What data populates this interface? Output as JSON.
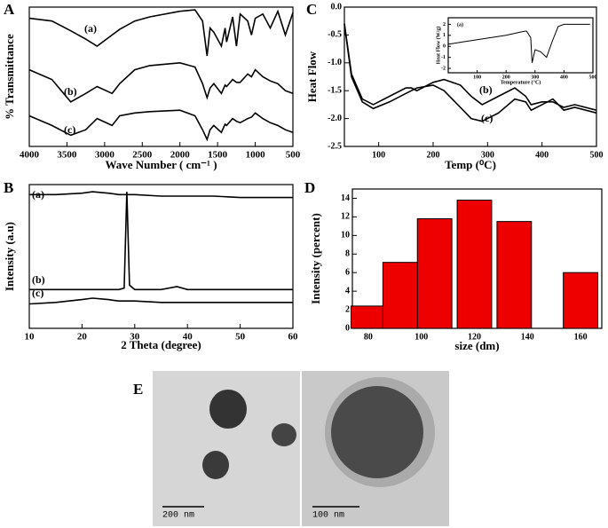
{
  "chart_data": [
    {
      "type": "line",
      "label": "A",
      "xlabel": "Wave Number ( cm⁻¹ )",
      "ylabel": "% Transmittance",
      "x": [
        4000,
        3700,
        3450,
        3250,
        3100,
        2900,
        2800,
        2600,
        2400,
        2000,
        1800,
        1700,
        1640,
        1600,
        1550,
        1450,
        1400,
        1380,
        1300,
        1250,
        1200,
        1100,
        1050,
        1000,
        900,
        800,
        700,
        600,
        500
      ],
      "series": [
        {
          "name": "(a)",
          "color": "#000000",
          "values": [
            92,
            90,
            83,
            77,
            72,
            80,
            84,
            90,
            93,
            97,
            98,
            90,
            65,
            85,
            82,
            72,
            85,
            75,
            93,
            72,
            95,
            90,
            80,
            92,
            95,
            85,
            97,
            80,
            96
          ]
        },
        {
          "name": "(b)",
          "color": "#000000",
          "values": [
            55,
            48,
            32,
            38,
            43,
            38,
            45,
            55,
            58,
            60,
            57,
            45,
            35,
            42,
            45,
            38,
            44,
            43,
            48,
            46,
            46,
            52,
            50,
            55,
            50,
            47,
            45,
            40,
            38
          ]
        },
        {
          "name": "(c)",
          "color": "#000000",
          "values": [
            22,
            15,
            8,
            12,
            20,
            15,
            22,
            24,
            25,
            26,
            22,
            12,
            5,
            12,
            15,
            10,
            16,
            15,
            20,
            18,
            17,
            20,
            21,
            24,
            20,
            17,
            15,
            12,
            10
          ]
        }
      ],
      "xlim": [
        4000,
        500
      ],
      "xticks": [
        4000,
        3500,
        3000,
        2500,
        2000,
        1500,
        1000,
        500
      ],
      "ylim": [
        0,
        100
      ]
    },
    {
      "type": "line",
      "label": "B",
      "xlabel": "2 Theta (degree)",
      "ylabel": "Intensity (a.u)",
      "x": [
        10,
        15,
        20,
        22,
        25,
        27,
        28,
        28.5,
        29,
        30,
        35,
        38,
        40,
        45,
        50,
        55,
        60
      ],
      "series": [
        {
          "name": "(a)",
          "color": "#000000",
          "values": [
            93,
            93,
            94,
            95,
            94,
            93,
            93,
            93,
            93,
            93,
            92,
            92,
            92,
            92,
            91,
            91,
            91
          ]
        },
        {
          "name": "(b)",
          "color": "#000000",
          "values": [
            27,
            27,
            27,
            27,
            27,
            27,
            28,
            95,
            30,
            27,
            27,
            29,
            27,
            27,
            27,
            27,
            27
          ]
        },
        {
          "name": "(c)",
          "color": "#000000",
          "values": [
            17,
            18,
            20,
            21,
            20,
            19,
            19,
            19,
            19,
            19,
            18,
            18,
            18,
            18,
            18,
            18,
            18
          ]
        }
      ],
      "xlim": [
        10,
        60
      ],
      "xticks": [
        10,
        20,
        30,
        40,
        50,
        60
      ],
      "ylim": [
        0,
        100
      ]
    },
    {
      "type": "line",
      "label": "C",
      "xlabel": "Temp (⁰C)",
      "ylabel": "Heat Flow",
      "x": [
        37,
        50,
        70,
        90,
        120,
        150,
        160,
        170,
        200,
        220,
        250,
        270,
        290,
        320,
        350,
        370,
        380,
        400,
        420,
        440,
        460,
        500
      ],
      "series": [
        {
          "name": "(b)",
          "color": "#000000",
          "values": [
            -0.3,
            -1.2,
            -1.65,
            -1.75,
            -1.6,
            -1.45,
            -1.45,
            -1.5,
            -1.35,
            -1.3,
            -1.4,
            -1.6,
            -1.75,
            -1.6,
            -1.45,
            -1.6,
            -1.75,
            -1.7,
            -1.7,
            -1.8,
            -1.75,
            -1.85
          ]
        },
        {
          "name": "(c)",
          "color": "#000000",
          "values": [
            -0.3,
            -1.25,
            -1.7,
            -1.82,
            -1.7,
            -1.55,
            -1.5,
            -1.45,
            -1.4,
            -1.5,
            -1.8,
            -2.0,
            -2.05,
            -1.9,
            -1.65,
            -1.7,
            -1.85,
            -1.75,
            -1.65,
            -1.85,
            -1.8,
            -1.9
          ]
        }
      ],
      "xlim": [
        37,
        500
      ],
      "xticks": [
        100,
        200,
        300,
        400,
        500
      ],
      "ylim": [
        -2.5,
        0
      ],
      "yticks": [
        {
          "value": 0,
          "label": "0.0"
        },
        -0.5,
        {
          "value": -1,
          "label": "-1.0"
        },
        -1.5,
        {
          "value": -2,
          "label": "-2.0"
        },
        -2.5
      ]
    },
    {
      "type": "line",
      "xlabel": "Temperature (°C)",
      "ylabel": "Heat Flow (W/g)",
      "x": [
        0,
        50,
        100,
        150,
        200,
        250,
        270,
        285,
        290,
        300,
        320,
        340,
        360,
        380,
        400,
        450,
        490
      ],
      "series": [
        {
          "name": "(a)",
          "color": "#000000",
          "values": [
            0.2,
            0.4,
            0.6,
            0.8,
            1.0,
            1.3,
            1.4,
            0.8,
            -1.5,
            -0.3,
            -0.5,
            -1.0,
            0.5,
            1.8,
            2.0,
            2.0,
            2.0
          ]
        }
      ],
      "xlim": [
        0,
        500
      ],
      "xticks": [
        100,
        200,
        300,
        400,
        500
      ],
      "ylim": [
        -2.4,
        2.6
      ],
      "yticks": [
        -2,
        -1,
        0,
        1,
        2
      ]
    },
    {
      "type": "bar",
      "label": "D",
      "xlabel": "size (dm)",
      "ylabel": "Intensity (percent)",
      "color": "#ee0000",
      "x": [
        80,
        92,
        105,
        120,
        135,
        160
      ],
      "values": [
        2.4,
        7.1,
        11.8,
        13.8,
        11.5,
        6.0
      ],
      "xlim": [
        74,
        168
      ],
      "xticks": [
        80,
        100,
        120,
        140,
        160
      ],
      "ylim": [
        0,
        15
      ],
      "yticks": [
        0,
        2,
        4,
        6,
        8,
        10,
        12,
        14
      ]
    }
  ],
  "images": {
    "label": "E",
    "scale_bars": [
      "200 nm",
      "100 nm"
    ]
  }
}
